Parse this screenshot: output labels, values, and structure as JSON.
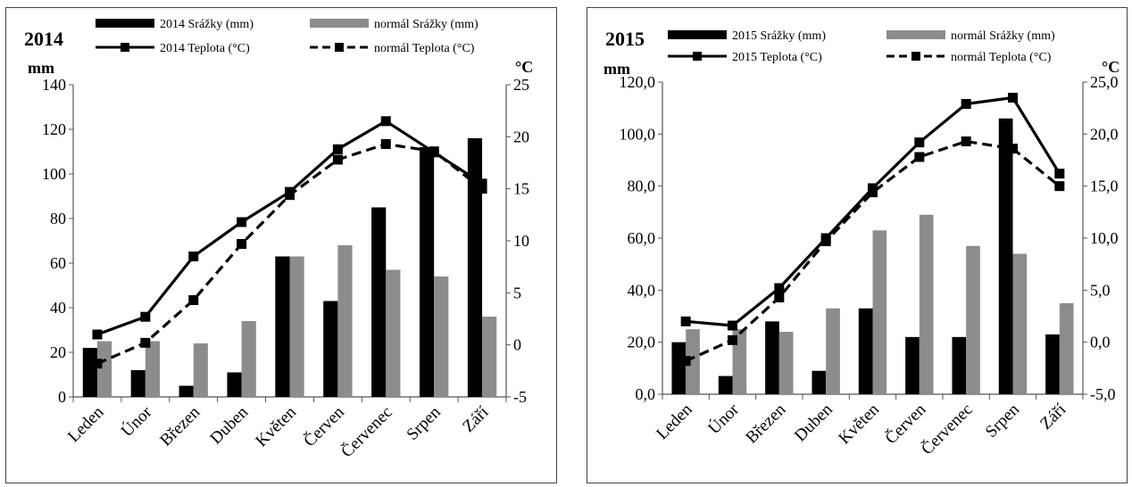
{
  "chart_data": [
    {
      "type": "bar",
      "title": "2014",
      "categories": [
        "Leden",
        "Únor",
        "Březen",
        "Duben",
        "Květen",
        "Červen",
        "Červenec",
        "Srpen",
        "Září"
      ],
      "ylabel": "mm",
      "y2label": "°C",
      "ylim": [
        0,
        140
      ],
      "y2lim": [
        -5,
        25
      ],
      "yticks": [
        "0",
        "20",
        "40",
        "60",
        "80",
        "100",
        "120",
        "140"
      ],
      "y2ticks": [
        "-5",
        "0",
        "5",
        "10",
        "15",
        "20",
        "25"
      ],
      "legend_position": "top",
      "grid": false,
      "bars": [
        {
          "name": "2014 Srážky (mm)",
          "color": "#000000",
          "values": [
            22,
            12,
            5,
            11,
            63,
            43,
            85,
            112,
            116
          ]
        },
        {
          "name": "normál Srážky (mm)",
          "color": "#8c8c8c",
          "values": [
            25,
            25,
            24,
            34,
            63,
            68,
            57,
            54,
            36
          ]
        }
      ],
      "lines": [
        {
          "name": "2014 Teplota (°C)",
          "style": "solid",
          "values": [
            1.0,
            2.7,
            8.5,
            11.8,
            14.7,
            18.8,
            21.5,
            18.5,
            15.5
          ]
        },
        {
          "name": "normál Teplota (°C)",
          "style": "dashed",
          "values": [
            -1.8,
            0.2,
            4.3,
            9.7,
            14.4,
            17.8,
            19.3,
            18.6,
            15.0
          ]
        }
      ]
    },
    {
      "type": "bar",
      "title": "2015",
      "categories": [
        "Leden",
        "Únor",
        "Březen",
        "Duben",
        "Květen",
        "Červen",
        "Červenec",
        "Srpen",
        "Září"
      ],
      "ylabel": "mm",
      "y2label": "°C",
      "ylim": [
        0,
        120
      ],
      "y2lim": [
        -5,
        25
      ],
      "yticks": [
        "0,0",
        "20,0",
        "40,0",
        "60,0",
        "80,0",
        "100,0",
        "120,0"
      ],
      "y2ticks": [
        "-5,0",
        "0,0",
        "5,0",
        "10,0",
        "15,0",
        "20,0",
        "25,0"
      ],
      "legend_position": "top",
      "grid": false,
      "bars": [
        {
          "name": "2015 Srážky (mm)",
          "color": "#000000",
          "values": [
            20,
            7,
            28,
            9,
            33,
            22,
            22,
            106,
            23
          ]
        },
        {
          "name": "normál Srážky (mm)",
          "color": "#8c8c8c",
          "values": [
            25,
            25,
            24,
            33,
            63,
            69,
            57,
            54,
            35
          ]
        }
      ],
      "lines": [
        {
          "name": "2015 Teplota (°C)",
          "style": "solid",
          "values": [
            2.0,
            1.6,
            5.2,
            10.0,
            14.8,
            19.2,
            22.9,
            23.5,
            16.2
          ]
        },
        {
          "name": "normál Teplota (°C)",
          "style": "dashed",
          "values": [
            -1.8,
            0.2,
            4.3,
            9.7,
            14.4,
            17.8,
            19.3,
            18.6,
            15.0
          ]
        }
      ]
    }
  ]
}
